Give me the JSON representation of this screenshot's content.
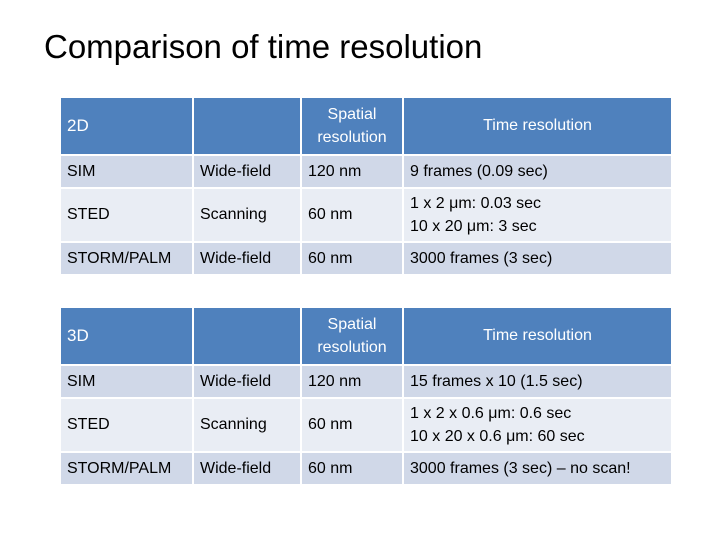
{
  "title": "Comparison of time resolution",
  "tables": [
    {
      "header": {
        "label": "2D",
        "col2": "",
        "spatial": "Spatial\nresolution",
        "time": "Time resolution"
      },
      "rows": [
        {
          "method": "SIM",
          "mode": "Wide-field",
          "spatial": "120 nm",
          "time": "9 frames (0.09 sec)"
        },
        {
          "method": "STED",
          "mode": "Scanning",
          "spatial": "60 nm",
          "time_lines": [
            "1 x 2 μm: 0.03 sec",
            "10 x 20 μm: 3 sec"
          ]
        },
        {
          "method": "STORM/PALM",
          "mode": "Wide-field",
          "spatial": "60 nm",
          "time": "3000 frames (3 sec)"
        }
      ]
    },
    {
      "header": {
        "label": "3D",
        "col2": "",
        "spatial": "Spatial\nresolution",
        "time": "Time resolution"
      },
      "rows": [
        {
          "method": "SIM",
          "mode": "Wide-field",
          "spatial": "120 nm",
          "time": "15 frames x 10 (1.5 sec)"
        },
        {
          "method": "STED",
          "mode": "Scanning",
          "spatial": "60 nm",
          "time_lines": [
            "1 x 2 x 0.6 μm: 0.6 sec",
            "10 x 20 x 0.6 μm: 60 sec"
          ]
        },
        {
          "method": "STORM/PALM",
          "mode": "Wide-field",
          "spatial": "60 nm",
          "time": "3000 frames (3 sec) – no scan!"
        }
      ]
    }
  ]
}
